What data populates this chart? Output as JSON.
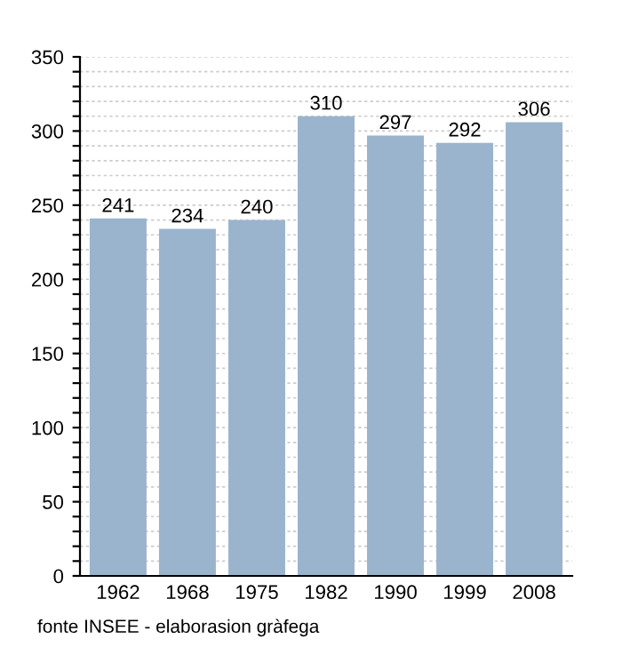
{
  "chart_data": {
    "type": "bar",
    "categories": [
      "1962",
      "1968",
      "1975",
      "1982",
      "1990",
      "1999",
      "2008"
    ],
    "values": [
      241,
      234,
      240,
      310,
      297,
      292,
      306
    ],
    "color": "#9bb4cd",
    "data_labels": true,
    "ylim": [
      0,
      350
    ],
    "yticks": [
      0,
      {
        "value": 10,
        "label": null
      },
      {
        "value": 20,
        "label": null
      },
      {
        "value": 30,
        "label": null
      },
      {
        "value": 40,
        "label": null
      },
      50,
      {
        "value": 60,
        "label": null
      },
      {
        "value": 70,
        "label": null
      },
      {
        "value": 80,
        "label": null
      },
      {
        "value": 90,
        "label": null
      },
      100,
      {
        "value": 110,
        "label": null
      },
      {
        "value": 120,
        "label": null
      },
      {
        "value": 130,
        "label": null
      },
      {
        "value": 140,
        "label": null
      },
      150,
      {
        "value": 160,
        "label": null
      },
      {
        "value": 170,
        "label": null
      },
      {
        "value": 180,
        "label": null
      },
      {
        "value": 190,
        "label": null
      },
      200,
      {
        "value": 210,
        "label": null
      },
      {
        "value": 220,
        "label": null
      },
      {
        "value": 230,
        "label": null
      },
      {
        "value": 240,
        "label": null
      },
      250,
      {
        "value": 260,
        "label": null
      },
      {
        "value": 270,
        "label": null
      },
      {
        "value": 280,
        "label": null
      },
      {
        "value": 290,
        "label": null
      },
      300,
      {
        "value": 310,
        "label": null
      },
      {
        "value": 320,
        "label": null
      },
      {
        "value": 330,
        "label": null
      },
      {
        "value": 340,
        "label": null
      },
      350
    ],
    "grid": "y",
    "annotations": [
      "fonte INSEE - elaborasion gràfega"
    ]
  }
}
